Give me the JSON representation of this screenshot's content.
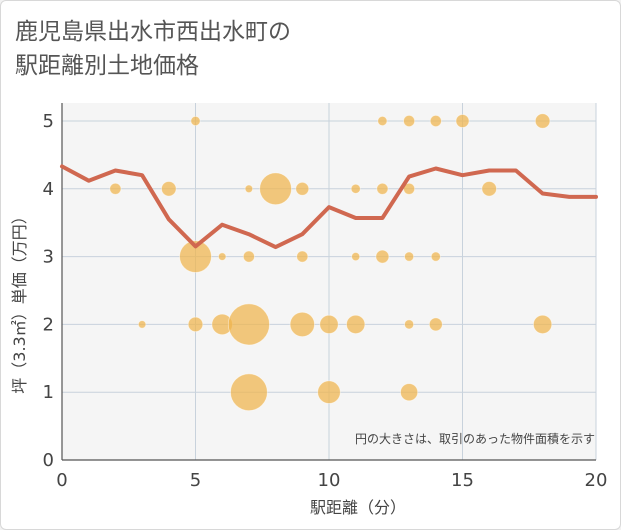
{
  "title": {
    "line1": "鹿児島県出水市西出水町の",
    "line2": "駅距離別土地価格"
  },
  "colors": {
    "background": "#ffffff",
    "plot_bg": "#f5f5f5",
    "grid": "#c8d2dc",
    "bubble": "#f0b44c",
    "line": "#d06850",
    "text": "#444444"
  },
  "chart_data": {
    "type": "scatter",
    "xlabel": "駅距離（分）",
    "ylabel": "坪（3.3㎡）単価（万円）",
    "xlim": [
      0,
      20
    ],
    "ylim": [
      0,
      5
    ],
    "xticks": [
      0,
      5,
      10,
      15,
      20
    ],
    "yticks": [
      0,
      1,
      2,
      3,
      4,
      5
    ],
    "grid": true,
    "note": "円の大きさは、取引のあった物件面積を示す",
    "bubbles": [
      {
        "x": 5,
        "y": 5,
        "s": 1
      },
      {
        "x": 12,
        "y": 5,
        "s": 1
      },
      {
        "x": 13,
        "y": 5,
        "s": 1.5
      },
      {
        "x": 14,
        "y": 5,
        "s": 1.5
      },
      {
        "x": 15,
        "y": 5,
        "s": 2
      },
      {
        "x": 18,
        "y": 5,
        "s": 2.5
      },
      {
        "x": 2,
        "y": 4,
        "s": 1.5
      },
      {
        "x": 4,
        "y": 4,
        "s": 2.5
      },
      {
        "x": 7,
        "y": 4,
        "s": 0.7
      },
      {
        "x": 8,
        "y": 4,
        "s": 12
      },
      {
        "x": 9,
        "y": 4,
        "s": 2
      },
      {
        "x": 11,
        "y": 4,
        "s": 1
      },
      {
        "x": 12,
        "y": 4,
        "s": 1.5
      },
      {
        "x": 13,
        "y": 4,
        "s": 1.5
      },
      {
        "x": 16,
        "y": 4,
        "s": 2.5
      },
      {
        "x": 5,
        "y": 3,
        "s": 12
      },
      {
        "x": 6,
        "y": 3,
        "s": 0.7
      },
      {
        "x": 7,
        "y": 3,
        "s": 1.5
      },
      {
        "x": 9,
        "y": 3,
        "s": 1.5
      },
      {
        "x": 11,
        "y": 3,
        "s": 0.8
      },
      {
        "x": 12,
        "y": 3,
        "s": 2
      },
      {
        "x": 13,
        "y": 3,
        "s": 1
      },
      {
        "x": 14,
        "y": 3,
        "s": 1
      },
      {
        "x": 3,
        "y": 2,
        "s": 0.7
      },
      {
        "x": 5,
        "y": 2,
        "s": 2.5
      },
      {
        "x": 6,
        "y": 2,
        "s": 5
      },
      {
        "x": 7,
        "y": 2,
        "s": 20
      },
      {
        "x": 9,
        "y": 2,
        "s": 7
      },
      {
        "x": 10,
        "y": 2,
        "s": 4
      },
      {
        "x": 11,
        "y": 2,
        "s": 4
      },
      {
        "x": 13,
        "y": 2,
        "s": 1
      },
      {
        "x": 14,
        "y": 2,
        "s": 2
      },
      {
        "x": 18,
        "y": 2,
        "s": 4
      },
      {
        "x": 7,
        "y": 1,
        "s": 16
      },
      {
        "x": 10,
        "y": 1,
        "s": 6
      },
      {
        "x": 13,
        "y": 1,
        "s": 3.5
      }
    ],
    "series": [
      {
        "type": "line",
        "x": [
          0,
          1,
          2,
          3,
          4,
          5,
          6,
          7,
          8,
          9,
          10,
          11,
          12,
          13,
          14,
          15,
          16,
          17,
          18,
          19,
          20
        ],
        "values": [
          4.33,
          4.12,
          4.27,
          4.2,
          3.55,
          3.15,
          3.47,
          3.33,
          3.14,
          3.33,
          3.73,
          3.57,
          3.57,
          4.18,
          4.3,
          4.2,
          4.27,
          4.27,
          3.93,
          3.88,
          3.88
        ]
      }
    ]
  }
}
